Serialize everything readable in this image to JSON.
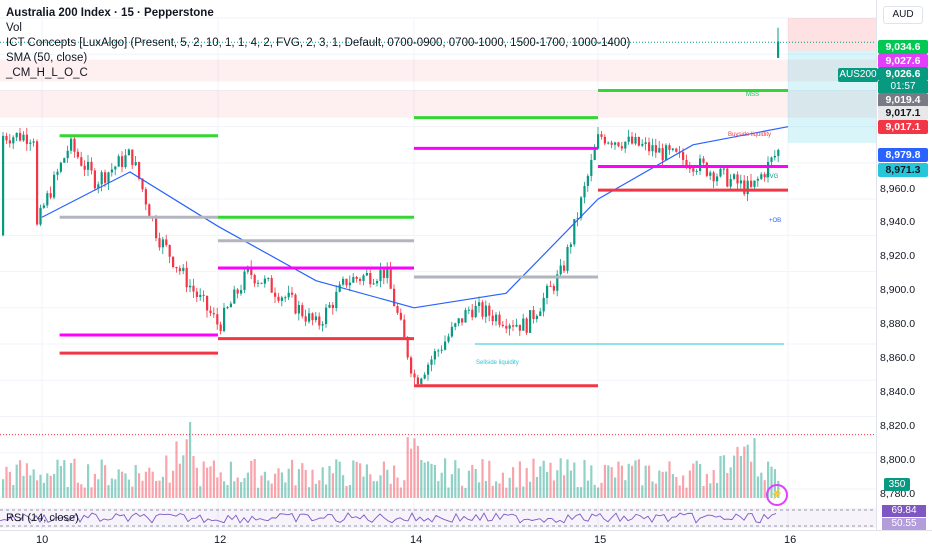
{
  "header": {
    "title": "Australia 200 Index · 15 · Pepperstone",
    "indicators": [
      "Vol",
      "ICT Concepts [LuxAlgo] (Present, 5, 2, 10, 1, 1, 4, 2, FVG, 2, 3, 1, Default, 0700-0900, 0700-1000, 1500-1700, 1000-1400)",
      "SMA (50, close)",
      "_CM_H_L_O_C"
    ]
  },
  "price_axis": {
    "currency": "AUD",
    "ticks": [
      "8,960.0",
      "8,940.0",
      "8,920.0",
      "8,900.0",
      "8,880.0",
      "8,860.0",
      "8,840.0",
      "8,820.0",
      "8,800.0",
      "8,780.0"
    ]
  },
  "price_tags": {
    "high": "9,034.6",
    "prev": "9,027.6",
    "last": "9,026.6",
    "countdown": "01:57",
    "level_a": "9,019.4",
    "level_b": "9,017.1",
    "level_c": "9,017.1",
    "sma": "8,979.8",
    "level_d": "8,971.3",
    "symbol": "AUS200"
  },
  "volume_tag": "350",
  "rsi": {
    "label": "RSI (14, close)",
    "value_a": "69.84",
    "value_b": "50.55"
  },
  "time_axis": {
    "labels": [
      "10",
      "12",
      "14",
      "15",
      "16"
    ]
  },
  "annotations": {
    "mss": "MSS",
    "liquidity": "Buyside liquidity",
    "sell_liq": "Sellside liquidity",
    "ob": "+OB",
    "fvg": "FVG"
  },
  "colors": {
    "up": "#089981",
    "down": "#f23645",
    "green_level": "#00e600",
    "magenta_level": "#ff00ff",
    "red_level": "#f23645",
    "sma": "#2962ff",
    "rsi": "#7e57c2"
  },
  "chart_data": {
    "type": "line",
    "series": [
      {
        "name": "SMA (50, close)",
        "x": [
          "10",
          "11",
          "12",
          "13",
          "14",
          "14.5",
          "15",
          "15.5",
          "16"
        ],
        "values": [
          8930,
          8955,
          8925,
          8895,
          8880,
          8888,
          8940,
          8970,
          8980
        ]
      }
    ],
    "ohlc_close_path": {
      "x": [
        "9.9",
        "10",
        "10.3",
        "10.6",
        "11",
        "11.3",
        "11.7",
        "12",
        "12.3",
        "12.7",
        "13",
        "13.3",
        "13.7",
        "14",
        "14.3",
        "14.6",
        "14.8",
        "15",
        "15.2",
        "15.5",
        "15.8",
        "16"
      ],
      "values": [
        8920,
        8935,
        8970,
        8950,
        8965,
        8920,
        8890,
        8870,
        8900,
        8885,
        8870,
        8895,
        8900,
        8840,
        8880,
        8870,
        8900,
        8975,
        8970,
        8960,
        8945,
        8975
      ]
    },
    "levels": [
      {
        "type": "resistance",
        "color": "green",
        "value": 8975,
        "from": "10.2",
        "to": "12"
      },
      {
        "type": "resistance",
        "color": "green",
        "value": 8930,
        "from": "12",
        "to": "14"
      },
      {
        "type": "resistance",
        "color": "green",
        "value": 8985,
        "from": "14",
        "to": "15"
      },
      {
        "type": "resistance",
        "color": "green",
        "value": 9000,
        "from": "15",
        "to": "16"
      },
      {
        "type": "support",
        "color": "magenta",
        "value": 8865,
        "from": "10.2",
        "to": "12"
      },
      {
        "type": "support",
        "color": "magenta",
        "value": 8902,
        "from": "12",
        "to": "14"
      },
      {
        "type": "support",
        "color": "magenta",
        "value": 8968,
        "from": "14",
        "to": "15"
      },
      {
        "type": "support",
        "color": "magenta",
        "value": 8958,
        "from": "15",
        "to": "16"
      },
      {
        "type": "low",
        "color": "red",
        "value": 8855,
        "from": "10.2",
        "to": "12"
      },
      {
        "type": "low",
        "color": "red",
        "value": 8863,
        "from": "12",
        "to": "14"
      },
      {
        "type": "low",
        "color": "red",
        "value": 8837,
        "from": "14",
        "to": "15"
      },
      {
        "type": "low",
        "color": "red",
        "value": 8945,
        "from": "15",
        "to": "16"
      }
    ],
    "ylim": [
      8775,
      9040
    ],
    "xlabel": "",
    "ylabel": "",
    "grid": true
  }
}
